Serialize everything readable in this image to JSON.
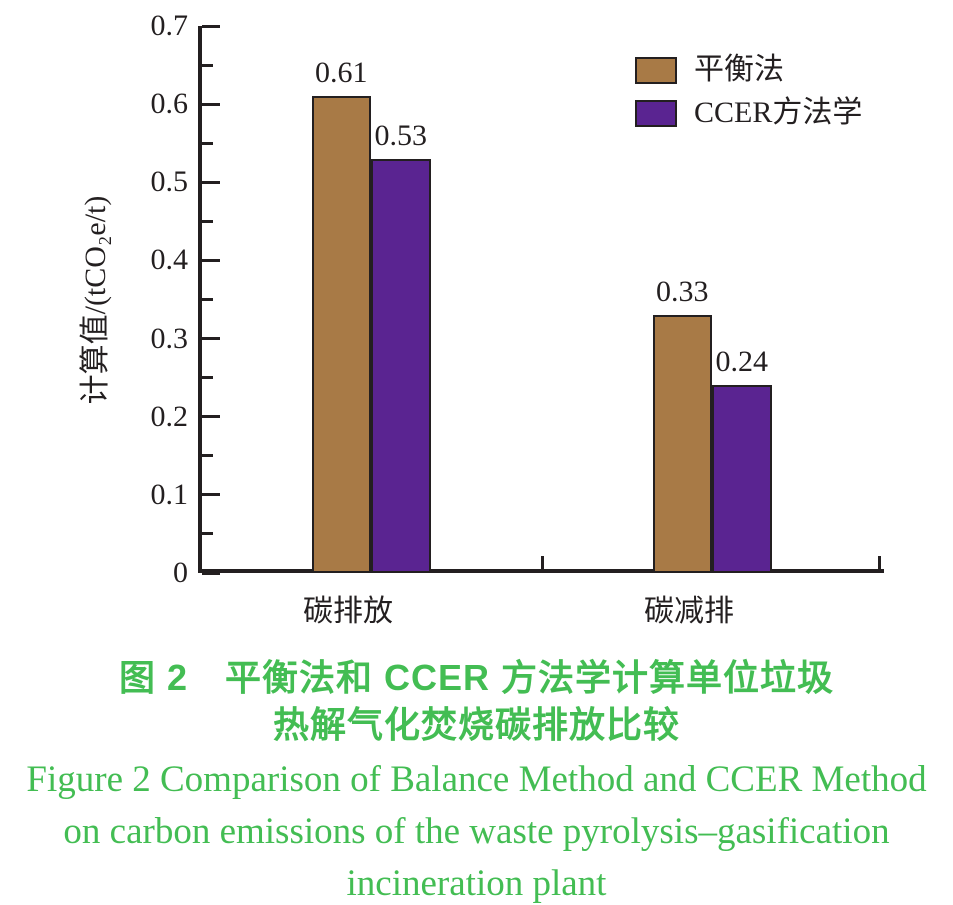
{
  "chart_data": {
    "type": "bar",
    "categories": [
      "碳排放",
      "碳减排"
    ],
    "series": [
      {
        "name": "平衡法",
        "color": "#A87A46",
        "values": [
          0.61,
          0.33
        ],
        "value_labels": [
          "0.61",
          "0.33"
        ]
      },
      {
        "name": "CCER方法学",
        "color": "#5A2491",
        "values": [
          0.53,
          0.24
        ],
        "value_labels": [
          "0.53",
          "0.24"
        ]
      }
    ],
    "title": "",
    "xlabel": "",
    "ylabel": "计算值/(tCO₂e/t)",
    "ylim": [
      0,
      0.7
    ],
    "ytick_labels": [
      "0",
      "0.1",
      "0.2",
      "0.3",
      "0.4",
      "0.5",
      "0.6",
      "0.7"
    ],
    "minor_tick_step": 0.05,
    "grid": false,
    "legend_position": "top-right",
    "bar_edge_color": "#231F20",
    "axis_color": "#231F20"
  },
  "caption": {
    "color": "#43BD53",
    "zh_line1": "图 2　平衡法和 CCER 方法学计算单位垃圾",
    "zh_line2": "热解气化焚烧碳排放比较",
    "en_line1": "Figure 2 Comparison of Balance Method and CCER Method",
    "en_line2": "on carbon emissions of the waste pyrolysis–gasification",
    "en_line3": "incineration plant"
  }
}
